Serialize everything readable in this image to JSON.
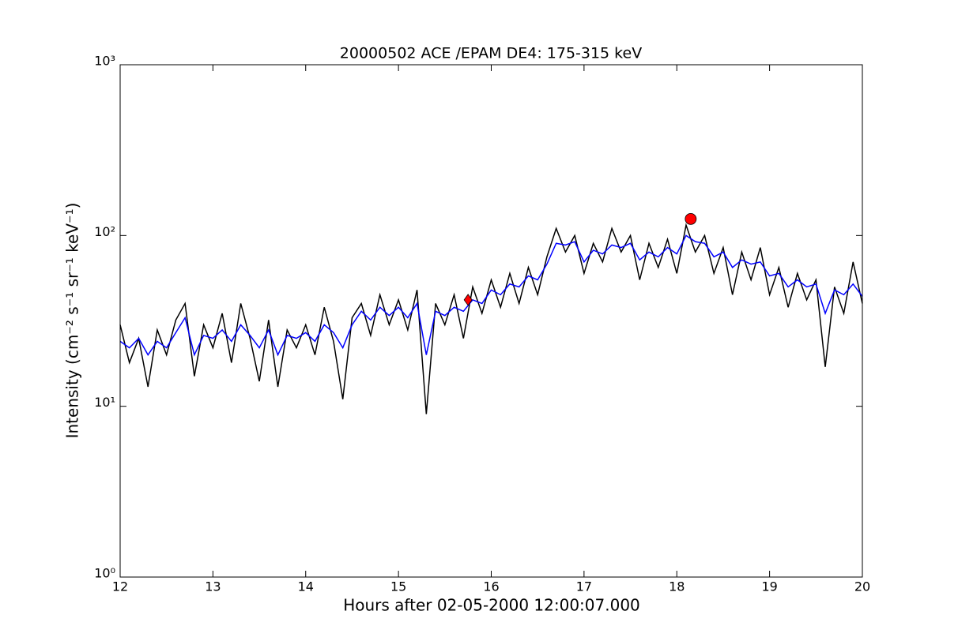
{
  "chart_data": {
    "type": "line",
    "title": "20000502 ACE /EPAM DE4: 175-315 keV",
    "xlabel": "Hours after 02-05-2000 12:00:07.000",
    "ylabel": "Intensity (cm⁻² s⁻¹ sr⁻¹ keV⁻¹)",
    "xlim": [
      12,
      20
    ],
    "xticks": [
      12,
      13,
      14,
      15,
      16,
      17,
      18,
      19,
      20
    ],
    "ylim": [
      1,
      1000
    ],
    "log_y": true,
    "yticks": [
      {
        "value": 1,
        "label": "10⁰"
      },
      {
        "value": 10,
        "label": "10¹"
      },
      {
        "value": 100,
        "label": "10²"
      },
      {
        "value": 1000,
        "label": "10³"
      }
    ],
    "x": [
      12.0,
      12.1,
      12.2,
      12.3,
      12.4,
      12.5,
      12.6,
      12.7,
      12.8,
      12.9,
      13.0,
      13.1,
      13.2,
      13.3,
      13.4,
      13.5,
      13.6,
      13.7,
      13.8,
      13.9,
      14.0,
      14.1,
      14.2,
      14.3,
      14.4,
      14.5,
      14.6,
      14.7,
      14.8,
      14.9,
      15.0,
      15.1,
      15.2,
      15.3,
      15.4,
      15.5,
      15.6,
      15.7,
      15.8,
      15.9,
      16.0,
      16.1,
      16.2,
      16.3,
      16.4,
      16.5,
      16.6,
      16.7,
      16.8,
      16.9,
      17.0,
      17.1,
      17.2,
      17.3,
      17.4,
      17.5,
      17.6,
      17.7,
      17.8,
      17.9,
      18.0,
      18.1,
      18.2,
      18.3,
      18.4,
      18.5,
      18.6,
      18.7,
      18.8,
      18.9,
      19.0,
      19.1,
      19.2,
      19.3,
      19.4,
      19.5,
      19.6,
      19.7,
      19.8,
      19.9,
      20.0
    ],
    "series": [
      {
        "color": "#000000",
        "values": [
          30,
          18,
          25,
          13,
          28,
          20,
          32,
          40,
          15,
          30,
          22,
          35,
          18,
          40,
          25,
          14,
          32,
          13,
          28,
          22,
          30,
          20,
          38,
          24,
          11,
          33,
          40,
          26,
          45,
          30,
          42,
          28,
          48,
          9,
          40,
          30,
          45,
          25,
          50,
          35,
          55,
          38,
          60,
          40,
          65,
          45,
          75,
          110,
          80,
          100,
          60,
          90,
          70,
          110,
          80,
          100,
          55,
          90,
          65,
          95,
          60,
          115,
          80,
          100,
          60,
          85,
          45,
          80,
          55,
          85,
          45,
          65,
          38,
          60,
          42,
          55,
          17,
          50,
          35,
          70,
          40
        ]
      },
      {
        "color": "#0000ff",
        "values": [
          24,
          22,
          25,
          20,
          24,
          22,
          27,
          33,
          20,
          26,
          25,
          28,
          24,
          30,
          26,
          22,
          28,
          20,
          26,
          25,
          27,
          24,
          30,
          27,
          22,
          30,
          36,
          32,
          38,
          34,
          38,
          33,
          40,
          20,
          36,
          34,
          38,
          36,
          42,
          40,
          48,
          45,
          52,
          50,
          58,
          55,
          68,
          90,
          88,
          92,
          70,
          82,
          78,
          88,
          85,
          90,
          72,
          80,
          75,
          85,
          78,
          100,
          92,
          90,
          75,
          80,
          65,
          72,
          68,
          70,
          58,
          60,
          50,
          55,
          50,
          52,
          35,
          48,
          45,
          52,
          44
        ]
      }
    ],
    "markers": [
      {
        "x": 15.75,
        "y": 42,
        "shape": "diamond",
        "color": "#ff0000"
      },
      {
        "x": 18.15,
        "y": 125,
        "shape": "circle",
        "color": "#ff0000"
      }
    ]
  }
}
